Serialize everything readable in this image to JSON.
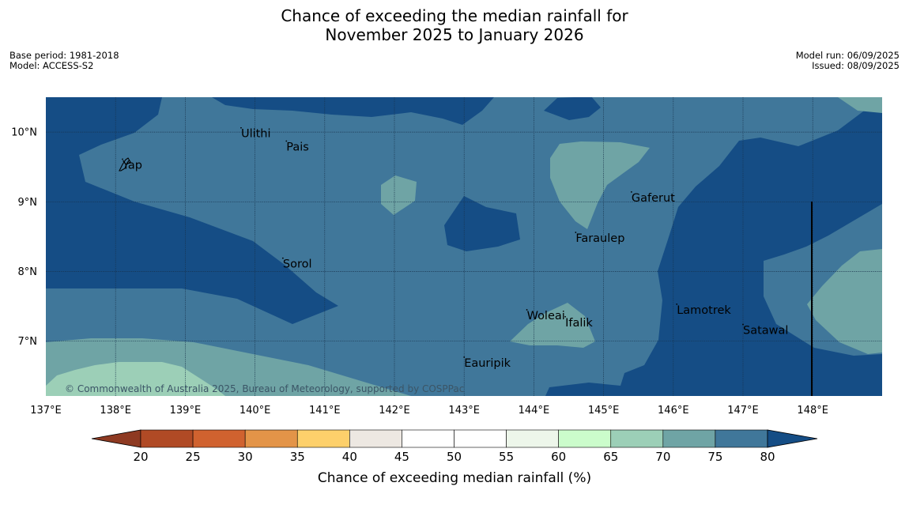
{
  "title_line1": "Chance of exceeding the median rainfall for",
  "title_line2": "November 2025 to January 2026",
  "meta_left": [
    "Base period: 1981-2018",
    "Model: ACCESS-S2"
  ],
  "meta_right": [
    "Model run: 06/09/2025",
    "Issued: 08/09/2025"
  ],
  "copyright": "© Commonwealth of Australia 2025, Bureau of Meteorology, supported by COSPPac",
  "x_ticks": [
    {
      "value": 137,
      "label": "137°E"
    },
    {
      "value": 138,
      "label": "138°E"
    },
    {
      "value": 139,
      "label": "139°E"
    },
    {
      "value": 140,
      "label": "140°E"
    },
    {
      "value": 141,
      "label": "141°E"
    },
    {
      "value": 142,
      "label": "142°E"
    },
    {
      "value": 143,
      "label": "143°E"
    },
    {
      "value": 144,
      "label": "144°E"
    },
    {
      "value": 145,
      "label": "145°E"
    },
    {
      "value": 146,
      "label": "146°E"
    },
    {
      "value": 147,
      "label": "147°E"
    },
    {
      "value": 148,
      "label": "148°E"
    }
  ],
  "y_ticks": [
    {
      "value": 10,
      "label": "10°N"
    },
    {
      "value": 9,
      "label": "9°N"
    },
    {
      "value": 8,
      "label": "8°N"
    },
    {
      "value": 7,
      "label": "7°N"
    }
  ],
  "places": [
    {
      "name": "Ulithi",
      "lon": 139.8,
      "lat": 9.97
    },
    {
      "name": "Pais",
      "lon": 140.45,
      "lat": 9.78
    },
    {
      "name": "Yap",
      "lon": 138.1,
      "lat": 9.52
    },
    {
      "name": "Gaferut",
      "lon": 145.4,
      "lat": 9.05
    },
    {
      "name": "Faraulep",
      "lon": 144.6,
      "lat": 8.47
    },
    {
      "name": "Sorol",
      "lon": 140.4,
      "lat": 8.1
    },
    {
      "name": "Lamotrek",
      "lon": 146.05,
      "lat": 7.44
    },
    {
      "name": "Woleai",
      "lon": 143.9,
      "lat": 7.36
    },
    {
      "name": "Ifalik",
      "lon": 144.45,
      "lat": 7.26
    },
    {
      "name": "Satawal",
      "lon": 147.0,
      "lat": 7.15
    },
    {
      "name": "Eauripik",
      "lon": 143.0,
      "lat": 6.68
    }
  ],
  "colorbar": {
    "label": "Chance of exceeding median rainfall (%)",
    "ticks": [
      "20",
      "25",
      "30",
      "35",
      "40",
      "45",
      "50",
      "55",
      "60",
      "65",
      "70",
      "75",
      "80"
    ],
    "under_color": "#8e3a22",
    "over_color": "#154d85",
    "colors": [
      "#b04a25",
      "#d0622f",
      "#e39448",
      "#fdd06b",
      "#ede8e2",
      "#ffffff",
      "#ffffff",
      "#edf6ea",
      "#cbfccb",
      "#9ccfb7",
      "#6fa4a5",
      "#40779a"
    ]
  },
  "chart_data": {
    "type": "heatmap",
    "legend_placement": "bottom",
    "x_range": [
      137,
      149
    ],
    "y_range": [
      6.2,
      10.5
    ],
    "levels_percent": [
      20,
      25,
      30,
      35,
      40,
      45,
      50,
      55,
      60,
      65,
      70,
      75,
      80
    ],
    "background_level": "75-80"
  }
}
